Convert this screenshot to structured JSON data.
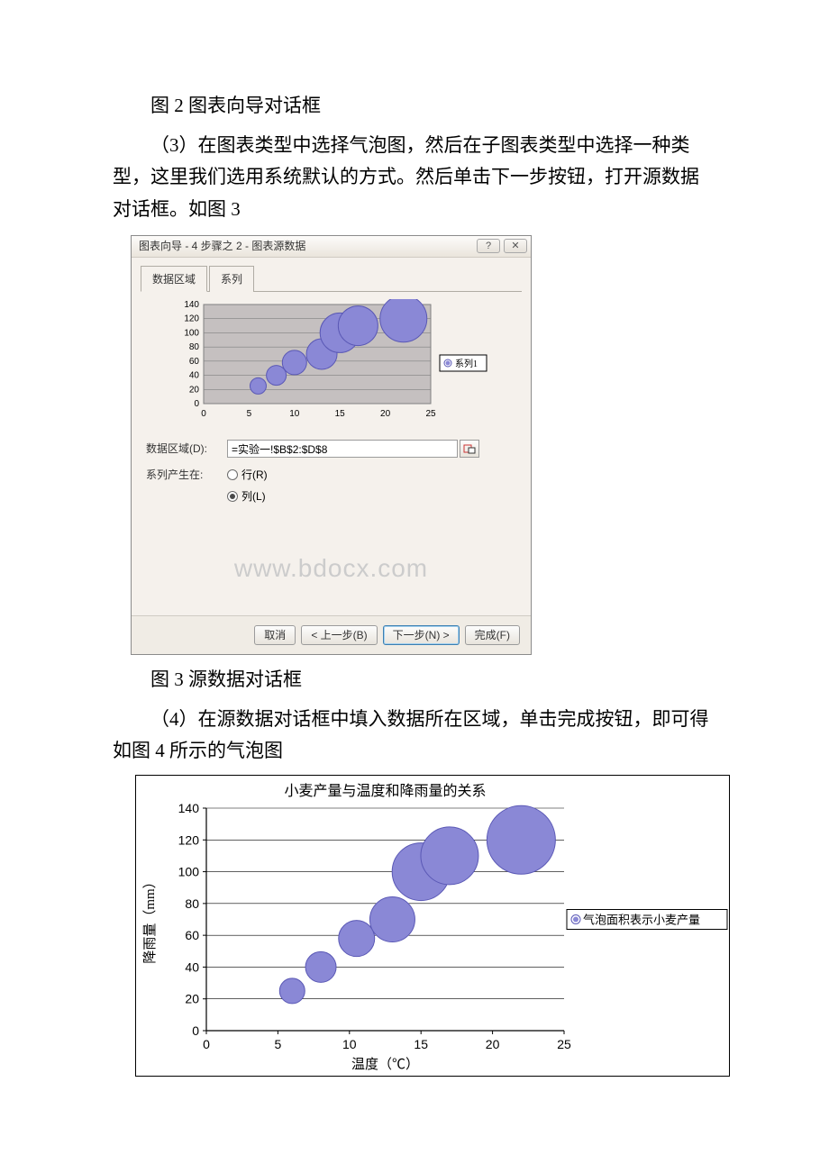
{
  "text": {
    "caption_fig2": "图 2 图表向导对话框",
    "para3": "（3）在图表类型中选择气泡图，然后在子图表类型中选择一种类型，这里我们选用系统默认的方式。然后单击下一步按钮，打开源数据对话框。如图 3",
    "caption_fig3": "图 3 源数据对话框",
    "para4": "（4）在源数据对话框中填入数据所在区域，单击完成按钮，即可得如图 4 所示的气泡图",
    "watermark": "www.bdocx.com"
  },
  "dialog": {
    "title": "图表向导 - 4 步骤之 2 - 图表源数据",
    "tabs": {
      "range": "数据区域",
      "series": "系列"
    },
    "range_label": "数据区域(D):",
    "range_value": "=实验一!$B$2:$D$8",
    "series_in_label": "系列产生在:",
    "radio_rows": "行(R)",
    "radio_cols": "列(L)",
    "radio_checked": "cols",
    "buttons": {
      "cancel": "取消",
      "back": "< 上一步(B)",
      "next": "下一步(N) >",
      "finish": "完成(F)"
    },
    "preview_legend": "系列1"
  },
  "preview_chart": {
    "type": "bubble",
    "series_color": "#8a88d6",
    "series_stroke": "#5a58b5",
    "plot_bg": "#c5c0c0",
    "grid_color": "#808080",
    "axis_color": "#000000",
    "tick_fontsize": 10,
    "xlim": [
      0,
      25
    ],
    "xtick_step": 5,
    "ylim": [
      0,
      140
    ],
    "ytick_step": 20,
    "points": [
      {
        "x": 6,
        "y": 25,
        "r": 9
      },
      {
        "x": 8,
        "y": 40,
        "r": 11
      },
      {
        "x": 10,
        "y": 58,
        "r": 13.5
      },
      {
        "x": 13,
        "y": 70,
        "r": 17
      },
      {
        "x": 15,
        "y": 100,
        "r": 22
      },
      {
        "x": 17,
        "y": 110,
        "r": 22
      },
      {
        "x": 22,
        "y": 120,
        "r": 26
      }
    ],
    "legend_box": {
      "bg": "#ffffff",
      "border": "#000000"
    }
  },
  "big_chart": {
    "type": "bubble",
    "title": "小麦产量与温度和降雨量的关系",
    "title_fontsize": 16,
    "xlabel": "温度（℃）",
    "ylabel": "降雨量（mm）",
    "label_fontsize": 15,
    "tick_fontsize": 14,
    "series_color": "#8a88d6",
    "series_stroke": "#5a58b5",
    "plot_bg": "#ffffff",
    "grid_color": "#000000",
    "axis_color": "#000000",
    "xlim": [
      0,
      25
    ],
    "xtick_step": 5,
    "ylim": [
      0,
      140
    ],
    "ytick_step": 20,
    "points": [
      {
        "x": 6,
        "y": 25,
        "r": 14
      },
      {
        "x": 8,
        "y": 40,
        "r": 17
      },
      {
        "x": 10.5,
        "y": 58,
        "r": 20
      },
      {
        "x": 13,
        "y": 70,
        "r": 25
      },
      {
        "x": 15,
        "y": 100,
        "r": 32
      },
      {
        "x": 17,
        "y": 110,
        "r": 32
      },
      {
        "x": 22,
        "y": 120,
        "r": 38
      }
    ],
    "legend_label": "气泡面积表示小麦产量",
    "legend_box": {
      "bg": "#ffffff",
      "border": "#000000"
    },
    "legend_marker_fill": "#8a88d6",
    "legend_marker_stroke": "#5a58b5"
  }
}
